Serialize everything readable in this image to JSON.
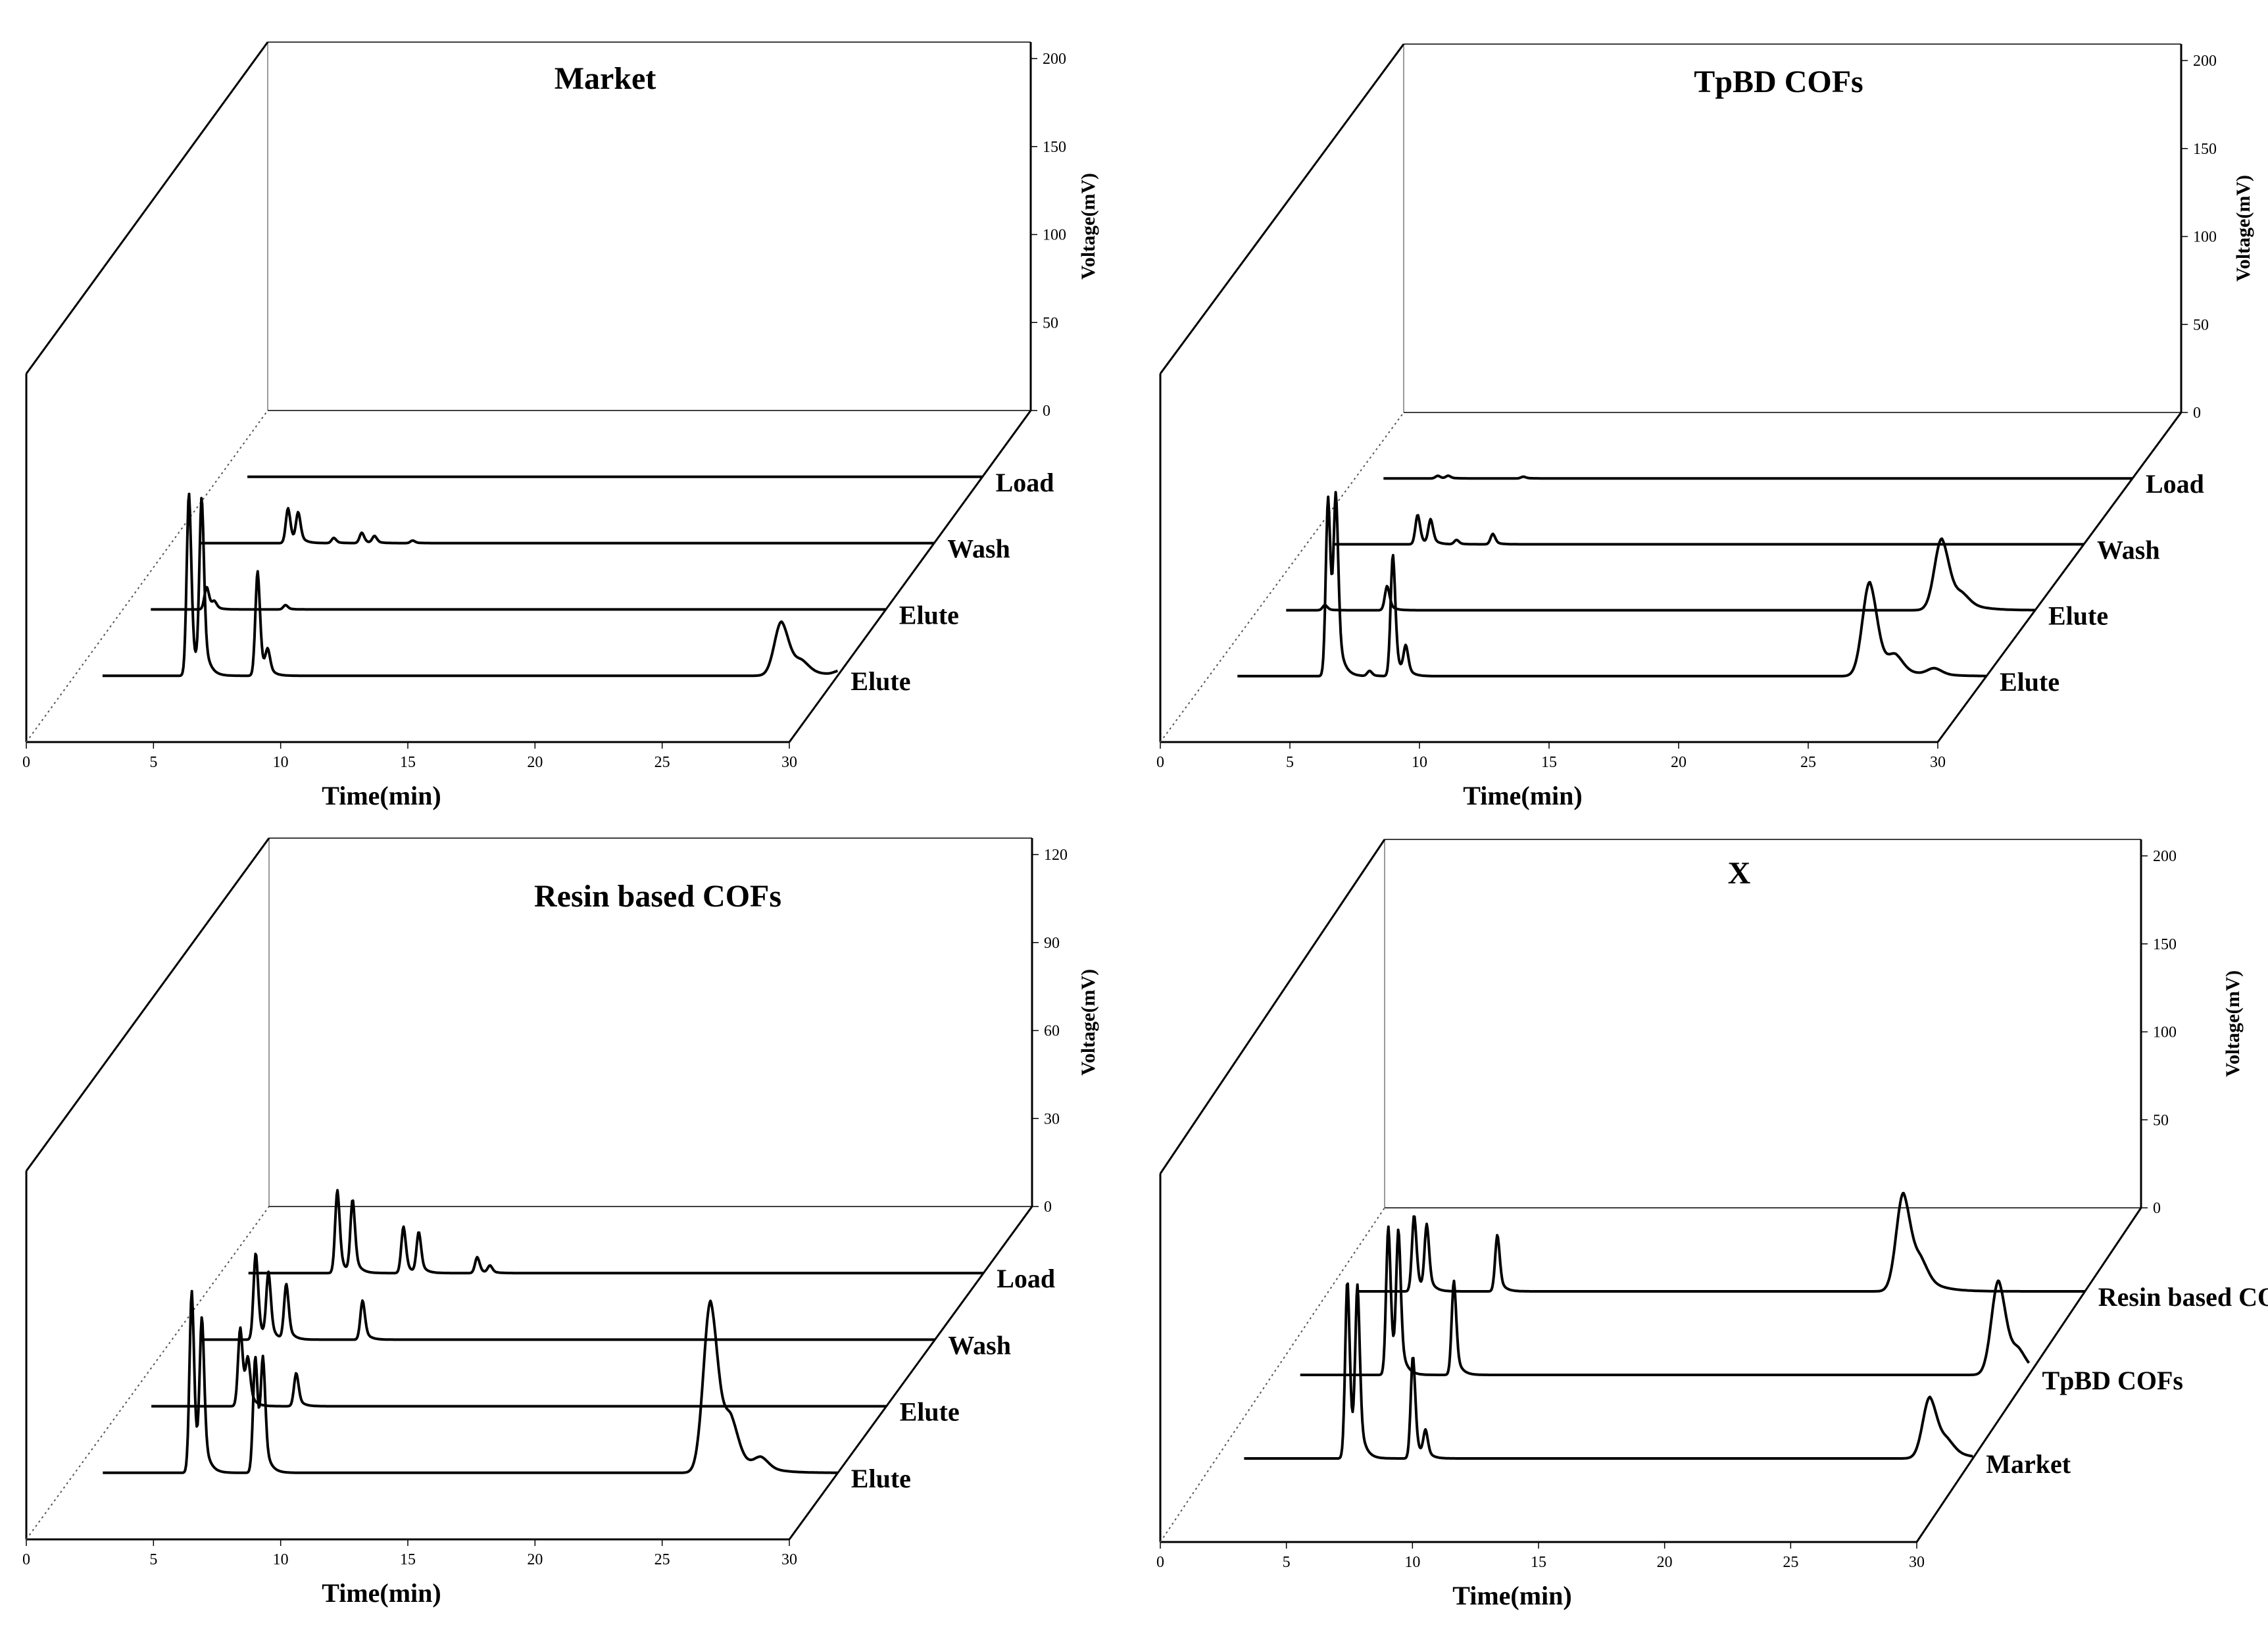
{
  "chart_data": [
    {
      "type": "line",
      "title": "Market",
      "xlabel": "Time(min)",
      "ylabel": "Voltage(mV)",
      "xlim": [
        0,
        30
      ],
      "ylim": [
        0,
        200
      ],
      "xticks": [
        "0",
        "5",
        "10",
        "15",
        "20",
        "25",
        "30"
      ],
      "yticks": [
        "0",
        "50",
        "100",
        "150",
        "200"
      ],
      "series": [
        {
          "name": "Load",
          "peaks": []
        },
        {
          "name": "Wash",
          "peaks": [
            [
              4.6,
              40
            ],
            [
              5.0,
              34
            ],
            [
              6.4,
              6
            ],
            [
              7.5,
              12
            ],
            [
              8.0,
              8
            ],
            [
              9.5,
              3
            ]
          ]
        },
        {
          "name": "Elute",
          "peaks": [
            [
              3.3,
              26
            ],
            [
              3.6,
              8
            ],
            [
              6.4,
              5
            ]
          ]
        },
        {
          "name": "Elute",
          "peaks": [
            [
              4.5,
              210
            ],
            [
              5.0,
              200
            ],
            [
              7.2,
              120
            ],
            [
              7.6,
              26
            ],
            [
              27.8,
              62
            ],
            [
              28.6,
              12
            ],
            [
              30.2,
              6
            ]
          ]
        }
      ]
    },
    {
      "type": "line",
      "title": "TpBD COFs",
      "xlabel": "Time(min)",
      "ylabel": "Voltage(mV)",
      "xlim": [
        0,
        30
      ],
      "ylim": [
        0,
        200
      ],
      "xticks": [
        "0",
        "5",
        "10",
        "15",
        "20",
        "25",
        "30"
      ],
      "yticks": [
        "0",
        "50",
        "100",
        "150",
        "200"
      ],
      "series": [
        {
          "name": "Load",
          "peaks": [
            [
              3.2,
              3
            ],
            [
              3.6,
              3
            ],
            [
              6.5,
              2
            ]
          ]
        },
        {
          "name": "Wash",
          "peaks": [
            [
              4.3,
              34
            ],
            [
              4.8,
              28
            ],
            [
              7.2,
              12
            ],
            [
              5.8,
              5
            ]
          ]
        },
        {
          "name": "Elute",
          "peaks": [
            [
              2.6,
              6
            ],
            [
              5.0,
              28
            ],
            [
              26.4,
              82
            ],
            [
              27.2,
              12
            ]
          ]
        },
        {
          "name": "Elute",
          "peaks": [
            [
              4.6,
              205
            ],
            [
              4.9,
              195
            ],
            [
              7.1,
              140
            ],
            [
              7.6,
              32
            ],
            [
              6.2,
              6
            ],
            [
              25.5,
              108
            ],
            [
              26.5,
              18
            ],
            [
              28.0,
              8
            ]
          ]
        }
      ]
    },
    {
      "type": "line",
      "title": "Resin based COFs",
      "xlabel": "Time(min)",
      "ylabel": "Voltage(mV)",
      "xlim": [
        0,
        30
      ],
      "ylim": [
        0,
        120
      ],
      "xticks": [
        "0",
        "5",
        "10",
        "15",
        "20",
        "25",
        "30"
      ],
      "yticks": [
        "0",
        "30",
        "60",
        "90",
        "120"
      ],
      "series": [
        {
          "name": "Load",
          "peaks": [
            [
              4.6,
              57
            ],
            [
              5.2,
              50
            ],
            [
              7.2,
              32
            ],
            [
              7.8,
              28
            ],
            [
              10.1,
              11
            ],
            [
              10.6,
              5
            ]
          ]
        },
        {
          "name": "Wash",
          "peaks": [
            [
              3.3,
              60
            ],
            [
              3.8,
              45
            ],
            [
              4.5,
              38
            ],
            [
              7.5,
              27
            ]
          ]
        },
        {
          "name": "Elute",
          "peaks": [
            [
              4.6,
              54
            ],
            [
              4.9,
              30
            ],
            [
              6.8,
              23
            ]
          ]
        },
        {
          "name": "Elute",
          "peaks": [
            [
              4.6,
              125
            ],
            [
              5.0,
              102
            ],
            [
              7.1,
              80
            ],
            [
              7.4,
              74
            ],
            [
              25.0,
              118
            ],
            [
              25.8,
              28
            ],
            [
              27.0,
              8
            ]
          ]
        }
      ]
    },
    {
      "type": "line",
      "title": "X",
      "xlabel": "Time(min)",
      "ylabel": "Voltage(mV)",
      "xlim": [
        0,
        30
      ],
      "ylim": [
        0,
        200
      ],
      "xticks": [
        "0",
        "5",
        "10",
        "15",
        "20",
        "25",
        "30"
      ],
      "yticks": [
        "0",
        "50",
        "100",
        "150",
        "200"
      ],
      "series": [
        {
          "name": "Resin based COFs",
          "peaks": [
            [
              3.4,
              88
            ],
            [
              3.9,
              75
            ],
            [
              6.7,
              65
            ],
            [
              22.8,
              112
            ],
            [
              23.5,
              25
            ]
          ]
        },
        {
          "name": "TpBD COFs",
          "peaks": [
            [
              4.6,
              170
            ],
            [
              5.0,
              160
            ],
            [
              7.2,
              108
            ],
            [
              28.8,
              108
            ],
            [
              29.6,
              20
            ]
          ]
        },
        {
          "name": "Market",
          "peaks": [
            [
              5.2,
              205
            ],
            [
              5.6,
              190
            ],
            [
              7.8,
              118
            ],
            [
              8.3,
              30
            ],
            [
              28.3,
              70
            ],
            [
              29.0,
              14
            ]
          ]
        }
      ]
    }
  ]
}
